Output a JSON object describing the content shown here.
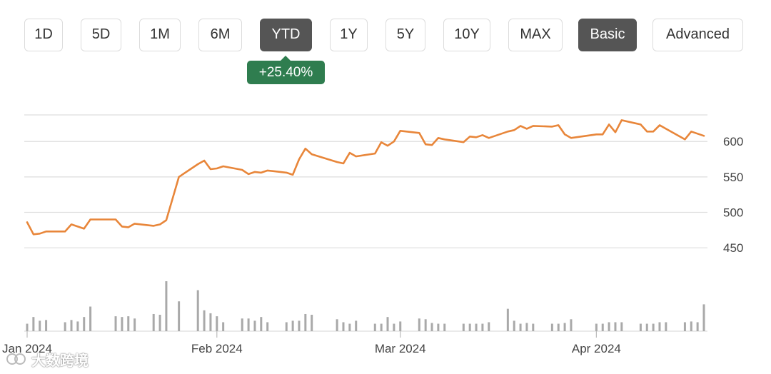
{
  "range_buttons": [
    {
      "label": "1D",
      "active": false
    },
    {
      "label": "5D",
      "active": false
    },
    {
      "label": "1M",
      "active": false
    },
    {
      "label": "6M",
      "active": false
    },
    {
      "label": "YTD",
      "active": true
    },
    {
      "label": "1Y",
      "active": false
    },
    {
      "label": "5Y",
      "active": false
    },
    {
      "label": "10Y",
      "active": false
    },
    {
      "label": "MAX",
      "active": false
    }
  ],
  "mode_buttons": [
    {
      "label": "Basic",
      "active": true
    },
    {
      "label": "Advanced",
      "active": false
    }
  ],
  "change_badge": "+25.40%",
  "watermark": "大数跨境",
  "colors": {
    "line": "#e8863a",
    "volume": "#a9a9a9",
    "grid": "#dedede",
    "badge": "#2f7d4f",
    "active_button": "#555555"
  },
  "chart_data": {
    "type": "line",
    "title": "",
    "xlabel": "",
    "ylabel": "",
    "ylim": [
      425,
      637.5
    ],
    "y_ticks": [
      450,
      500,
      550,
      600
    ],
    "x_ticks": [
      {
        "label": "Jan 2024",
        "date": "2024-01-02"
      },
      {
        "label": "Feb 2024",
        "date": "2024-02-01"
      },
      {
        "label": "Mar 2024",
        "date": "2024-03-01"
      },
      {
        "label": "Apr 2024",
        "date": "2024-04-01"
      }
    ],
    "grid": true,
    "series": [
      {
        "values": [
          [
            "2024-01-02",
            486
          ],
          [
            "2024-01-03",
            469
          ],
          [
            "2024-01-04",
            470
          ],
          [
            "2024-01-05",
            473
          ],
          [
            "2024-01-08",
            473
          ],
          [
            "2024-01-09",
            483
          ],
          [
            "2024-01-10",
            480
          ],
          [
            "2024-01-11",
            477
          ],
          [
            "2024-01-12",
            490
          ],
          [
            "2024-01-16",
            490
          ],
          [
            "2024-01-17",
            480
          ],
          [
            "2024-01-18",
            479
          ],
          [
            "2024-01-19",
            484
          ],
          [
            "2024-01-22",
            481
          ],
          [
            "2024-01-23",
            483
          ],
          [
            "2024-01-24",
            489
          ],
          [
            "2024-01-26",
            550
          ],
          [
            "2024-01-29",
            568
          ],
          [
            "2024-01-30",
            573
          ],
          [
            "2024-01-31",
            561
          ],
          [
            "2024-02-01",
            562
          ],
          [
            "2024-02-02",
            565
          ],
          [
            "2024-02-05",
            560
          ],
          [
            "2024-02-06",
            554
          ],
          [
            "2024-02-07",
            557
          ],
          [
            "2024-02-08",
            556
          ],
          [
            "2024-02-09",
            559
          ],
          [
            "2024-02-12",
            556
          ],
          [
            "2024-02-13",
            553
          ],
          [
            "2024-02-14",
            575
          ],
          [
            "2024-02-15",
            590
          ],
          [
            "2024-02-16",
            582
          ],
          [
            "2024-02-20",
            571
          ],
          [
            "2024-02-21",
            569
          ],
          [
            "2024-02-22",
            584
          ],
          [
            "2024-02-23",
            579
          ],
          [
            "2024-02-26",
            583
          ],
          [
            "2024-02-27",
            599
          ],
          [
            "2024-02-28",
            594
          ],
          [
            "2024-02-29",
            600
          ],
          [
            "2024-03-01",
            615
          ],
          [
            "2024-03-04",
            612
          ],
          [
            "2024-03-05",
            596
          ],
          [
            "2024-03-06",
            595
          ],
          [
            "2024-03-07",
            605
          ],
          [
            "2024-03-08",
            603
          ],
          [
            "2024-03-11",
            599
          ],
          [
            "2024-03-12",
            607
          ],
          [
            "2024-03-13",
            606
          ],
          [
            "2024-03-14",
            609
          ],
          [
            "2024-03-15",
            605
          ],
          [
            "2024-03-18",
            614
          ],
          [
            "2024-03-19",
            616
          ],
          [
            "2024-03-20",
            622
          ],
          [
            "2024-03-21",
            618
          ],
          [
            "2024-03-22",
            622
          ],
          [
            "2024-03-25",
            621
          ],
          [
            "2024-03-26",
            623
          ],
          [
            "2024-03-27",
            610
          ],
          [
            "2024-03-28",
            605
          ],
          [
            "2024-04-01",
            610
          ],
          [
            "2024-04-02",
            610
          ],
          [
            "2024-04-03",
            624
          ],
          [
            "2024-04-04",
            613
          ],
          [
            "2024-04-05",
            630
          ],
          [
            "2024-04-08",
            624
          ],
          [
            "2024-04-09",
            614
          ],
          [
            "2024-04-10",
            614
          ],
          [
            "2024-04-11",
            623
          ],
          [
            "2024-04-12",
            618
          ],
          [
            "2024-04-15",
            603
          ],
          [
            "2024-04-16",
            614
          ],
          [
            "2024-04-17",
            611
          ],
          [
            "2024-04-18",
            608
          ]
        ]
      }
    ],
    "volume": {
      "values": [
        [
          "2024-01-02",
          1.0
        ],
        [
          "2024-01-03",
          1.9
        ],
        [
          "2024-01-04",
          1.4
        ],
        [
          "2024-01-05",
          1.5
        ],
        [
          "2024-01-08",
          1.2
        ],
        [
          "2024-01-09",
          1.5
        ],
        [
          "2024-01-10",
          1.3
        ],
        [
          "2024-01-11",
          1.9
        ],
        [
          "2024-01-12",
          3.3
        ],
        [
          "2024-01-16",
          2.0
        ],
        [
          "2024-01-17",
          1.9
        ],
        [
          "2024-01-18",
          2.0
        ],
        [
          "2024-01-19",
          1.7
        ],
        [
          "2024-01-22",
          2.3
        ],
        [
          "2024-01-23",
          2.2
        ],
        [
          "2024-01-24",
          6.7
        ],
        [
          "2024-01-26",
          4.0
        ],
        [
          "2024-01-29",
          5.5
        ],
        [
          "2024-01-30",
          2.8
        ],
        [
          "2024-01-31",
          2.4
        ],
        [
          "2024-02-01",
          2.0
        ],
        [
          "2024-02-02",
          1.2
        ],
        [
          "2024-02-05",
          1.7
        ],
        [
          "2024-02-06",
          1.7
        ],
        [
          "2024-02-07",
          1.4
        ],
        [
          "2024-02-08",
          1.9
        ],
        [
          "2024-02-09",
          1.2
        ],
        [
          "2024-02-12",
          1.2
        ],
        [
          "2024-02-13",
          1.4
        ],
        [
          "2024-02-14",
          1.4
        ],
        [
          "2024-02-15",
          2.3
        ],
        [
          "2024-02-16",
          2.2
        ],
        [
          "2024-02-20",
          1.6
        ],
        [
          "2024-02-21",
          1.2
        ],
        [
          "2024-02-22",
          1.0
        ],
        [
          "2024-02-23",
          1.4
        ],
        [
          "2024-02-26",
          1.0
        ],
        [
          "2024-02-27",
          1.0
        ],
        [
          "2024-02-28",
          1.9
        ],
        [
          "2024-02-29",
          1.0
        ],
        [
          "2024-03-01",
          1.3
        ],
        [
          "2024-03-04",
          1.7
        ],
        [
          "2024-03-05",
          1.6
        ],
        [
          "2024-03-06",
          1.1
        ],
        [
          "2024-03-07",
          1.0
        ],
        [
          "2024-03-08",
          1.0
        ],
        [
          "2024-03-11",
          1.0
        ],
        [
          "2024-03-12",
          1.0
        ],
        [
          "2024-03-13",
          1.0
        ],
        [
          "2024-03-14",
          1.0
        ],
        [
          "2024-03-15",
          1.2
        ],
        [
          "2024-03-18",
          3.0
        ],
        [
          "2024-03-19",
          1.4
        ],
        [
          "2024-03-20",
          1.0
        ],
        [
          "2024-03-21",
          1.1
        ],
        [
          "2024-03-22",
          1.0
        ],
        [
          "2024-03-25",
          1.0
        ],
        [
          "2024-03-26",
          1.0
        ],
        [
          "2024-03-27",
          1.1
        ],
        [
          "2024-03-28",
          1.6
        ],
        [
          "2024-04-01",
          1.0
        ],
        [
          "2024-04-02",
          1.0
        ],
        [
          "2024-04-03",
          1.2
        ],
        [
          "2024-04-04",
          1.2
        ],
        [
          "2024-04-05",
          1.2
        ],
        [
          "2024-04-08",
          1.0
        ],
        [
          "2024-04-09",
          1.0
        ],
        [
          "2024-04-10",
          1.0
        ],
        [
          "2024-04-11",
          1.2
        ],
        [
          "2024-04-12",
          1.2
        ],
        [
          "2024-04-15",
          1.2
        ],
        [
          "2024-04-16",
          1.3
        ],
        [
          "2024-04-17",
          1.2
        ],
        [
          "2024-04-18",
          3.6
        ]
      ]
    }
  }
}
